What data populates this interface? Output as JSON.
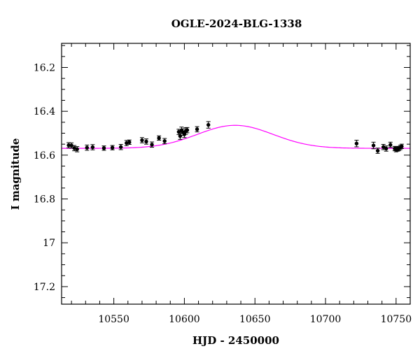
{
  "chart_data": {
    "type": "scatter",
    "title": "OGLE-2024-BLG-1338",
    "xlabel": "HJD - 2450000",
    "ylabel": "I magnitude",
    "xlim": [
      10513,
      10760
    ],
    "ylim": [
      17.28,
      16.09
    ],
    "y_inverted": true,
    "x_major_ticks": [
      10550,
      10600,
      10650,
      10700,
      10750
    ],
    "x_tick_labels": [
      "10550",
      "10600",
      "10650",
      "10700",
      "10750"
    ],
    "x_minor_step": 10,
    "y_major_ticks": [
      16.2,
      16.4,
      16.6,
      16.8,
      17.0,
      17.2
    ],
    "y_tick_labels": [
      "16.2",
      "16.4",
      "16.6",
      "16.8",
      "17",
      "17.2"
    ],
    "y_minor_step": 0.05,
    "series": [
      {
        "name": "data",
        "color": "#000000",
        "points": [
          {
            "x": 10518,
            "y": 16.555,
            "err": 0.012
          },
          {
            "x": 10520,
            "y": 16.556,
            "err": 0.012
          },
          {
            "x": 10522,
            "y": 16.568,
            "err": 0.012
          },
          {
            "x": 10524,
            "y": 16.573,
            "err": 0.012
          },
          {
            "x": 10531,
            "y": 16.566,
            "err": 0.012
          },
          {
            "x": 10535,
            "y": 16.564,
            "err": 0.012
          },
          {
            "x": 10543,
            "y": 16.568,
            "err": 0.01
          },
          {
            "x": 10549,
            "y": 16.566,
            "err": 0.01
          },
          {
            "x": 10555,
            "y": 16.563,
            "err": 0.012
          },
          {
            "x": 10559,
            "y": 16.545,
            "err": 0.012
          },
          {
            "x": 10561,
            "y": 16.541,
            "err": 0.01
          },
          {
            "x": 10570,
            "y": 16.532,
            "err": 0.012
          },
          {
            "x": 10573,
            "y": 16.538,
            "err": 0.012
          },
          {
            "x": 10577,
            "y": 16.552,
            "err": 0.012
          },
          {
            "x": 10582,
            "y": 16.522,
            "err": 0.01
          },
          {
            "x": 10586,
            "y": 16.536,
            "err": 0.012
          },
          {
            "x": 10596,
            "y": 16.494,
            "err": 0.012
          },
          {
            "x": 10597,
            "y": 16.513,
            "err": 0.015
          },
          {
            "x": 10598,
            "y": 16.487,
            "err": 0.015
          },
          {
            "x": 10599,
            "y": 16.495,
            "err": 0.015
          },
          {
            "x": 10600,
            "y": 16.505,
            "err": 0.015
          },
          {
            "x": 10601,
            "y": 16.49,
            "err": 0.015
          },
          {
            "x": 10602,
            "y": 16.486,
            "err": 0.012
          },
          {
            "x": 10609,
            "y": 16.482,
            "err": 0.012
          },
          {
            "x": 10617,
            "y": 16.462,
            "err": 0.015
          },
          {
            "x": 10722,
            "y": 16.547,
            "err": 0.015
          },
          {
            "x": 10734,
            "y": 16.556,
            "err": 0.015
          },
          {
            "x": 10737,
            "y": 16.58,
            "err": 0.012
          },
          {
            "x": 10741,
            "y": 16.563,
            "err": 0.012
          },
          {
            "x": 10743,
            "y": 16.57,
            "err": 0.012
          },
          {
            "x": 10746,
            "y": 16.553,
            "err": 0.012
          },
          {
            "x": 10749,
            "y": 16.57,
            "err": 0.01
          },
          {
            "x": 10750,
            "y": 16.575,
            "err": 0.01
          },
          {
            "x": 10751,
            "y": 16.572,
            "err": 0.01
          },
          {
            "x": 10752,
            "y": 16.57,
            "err": 0.01
          },
          {
            "x": 10753,
            "y": 16.565,
            "err": 0.01
          },
          {
            "x": 10754,
            "y": 16.56,
            "err": 0.01
          }
        ]
      },
      {
        "name": "model",
        "type": "line",
        "color": "#ff00ff",
        "model": {
          "t0": 10636,
          "baseline": 16.569,
          "peak": 16.464,
          "tau": 38
        }
      }
    ]
  }
}
